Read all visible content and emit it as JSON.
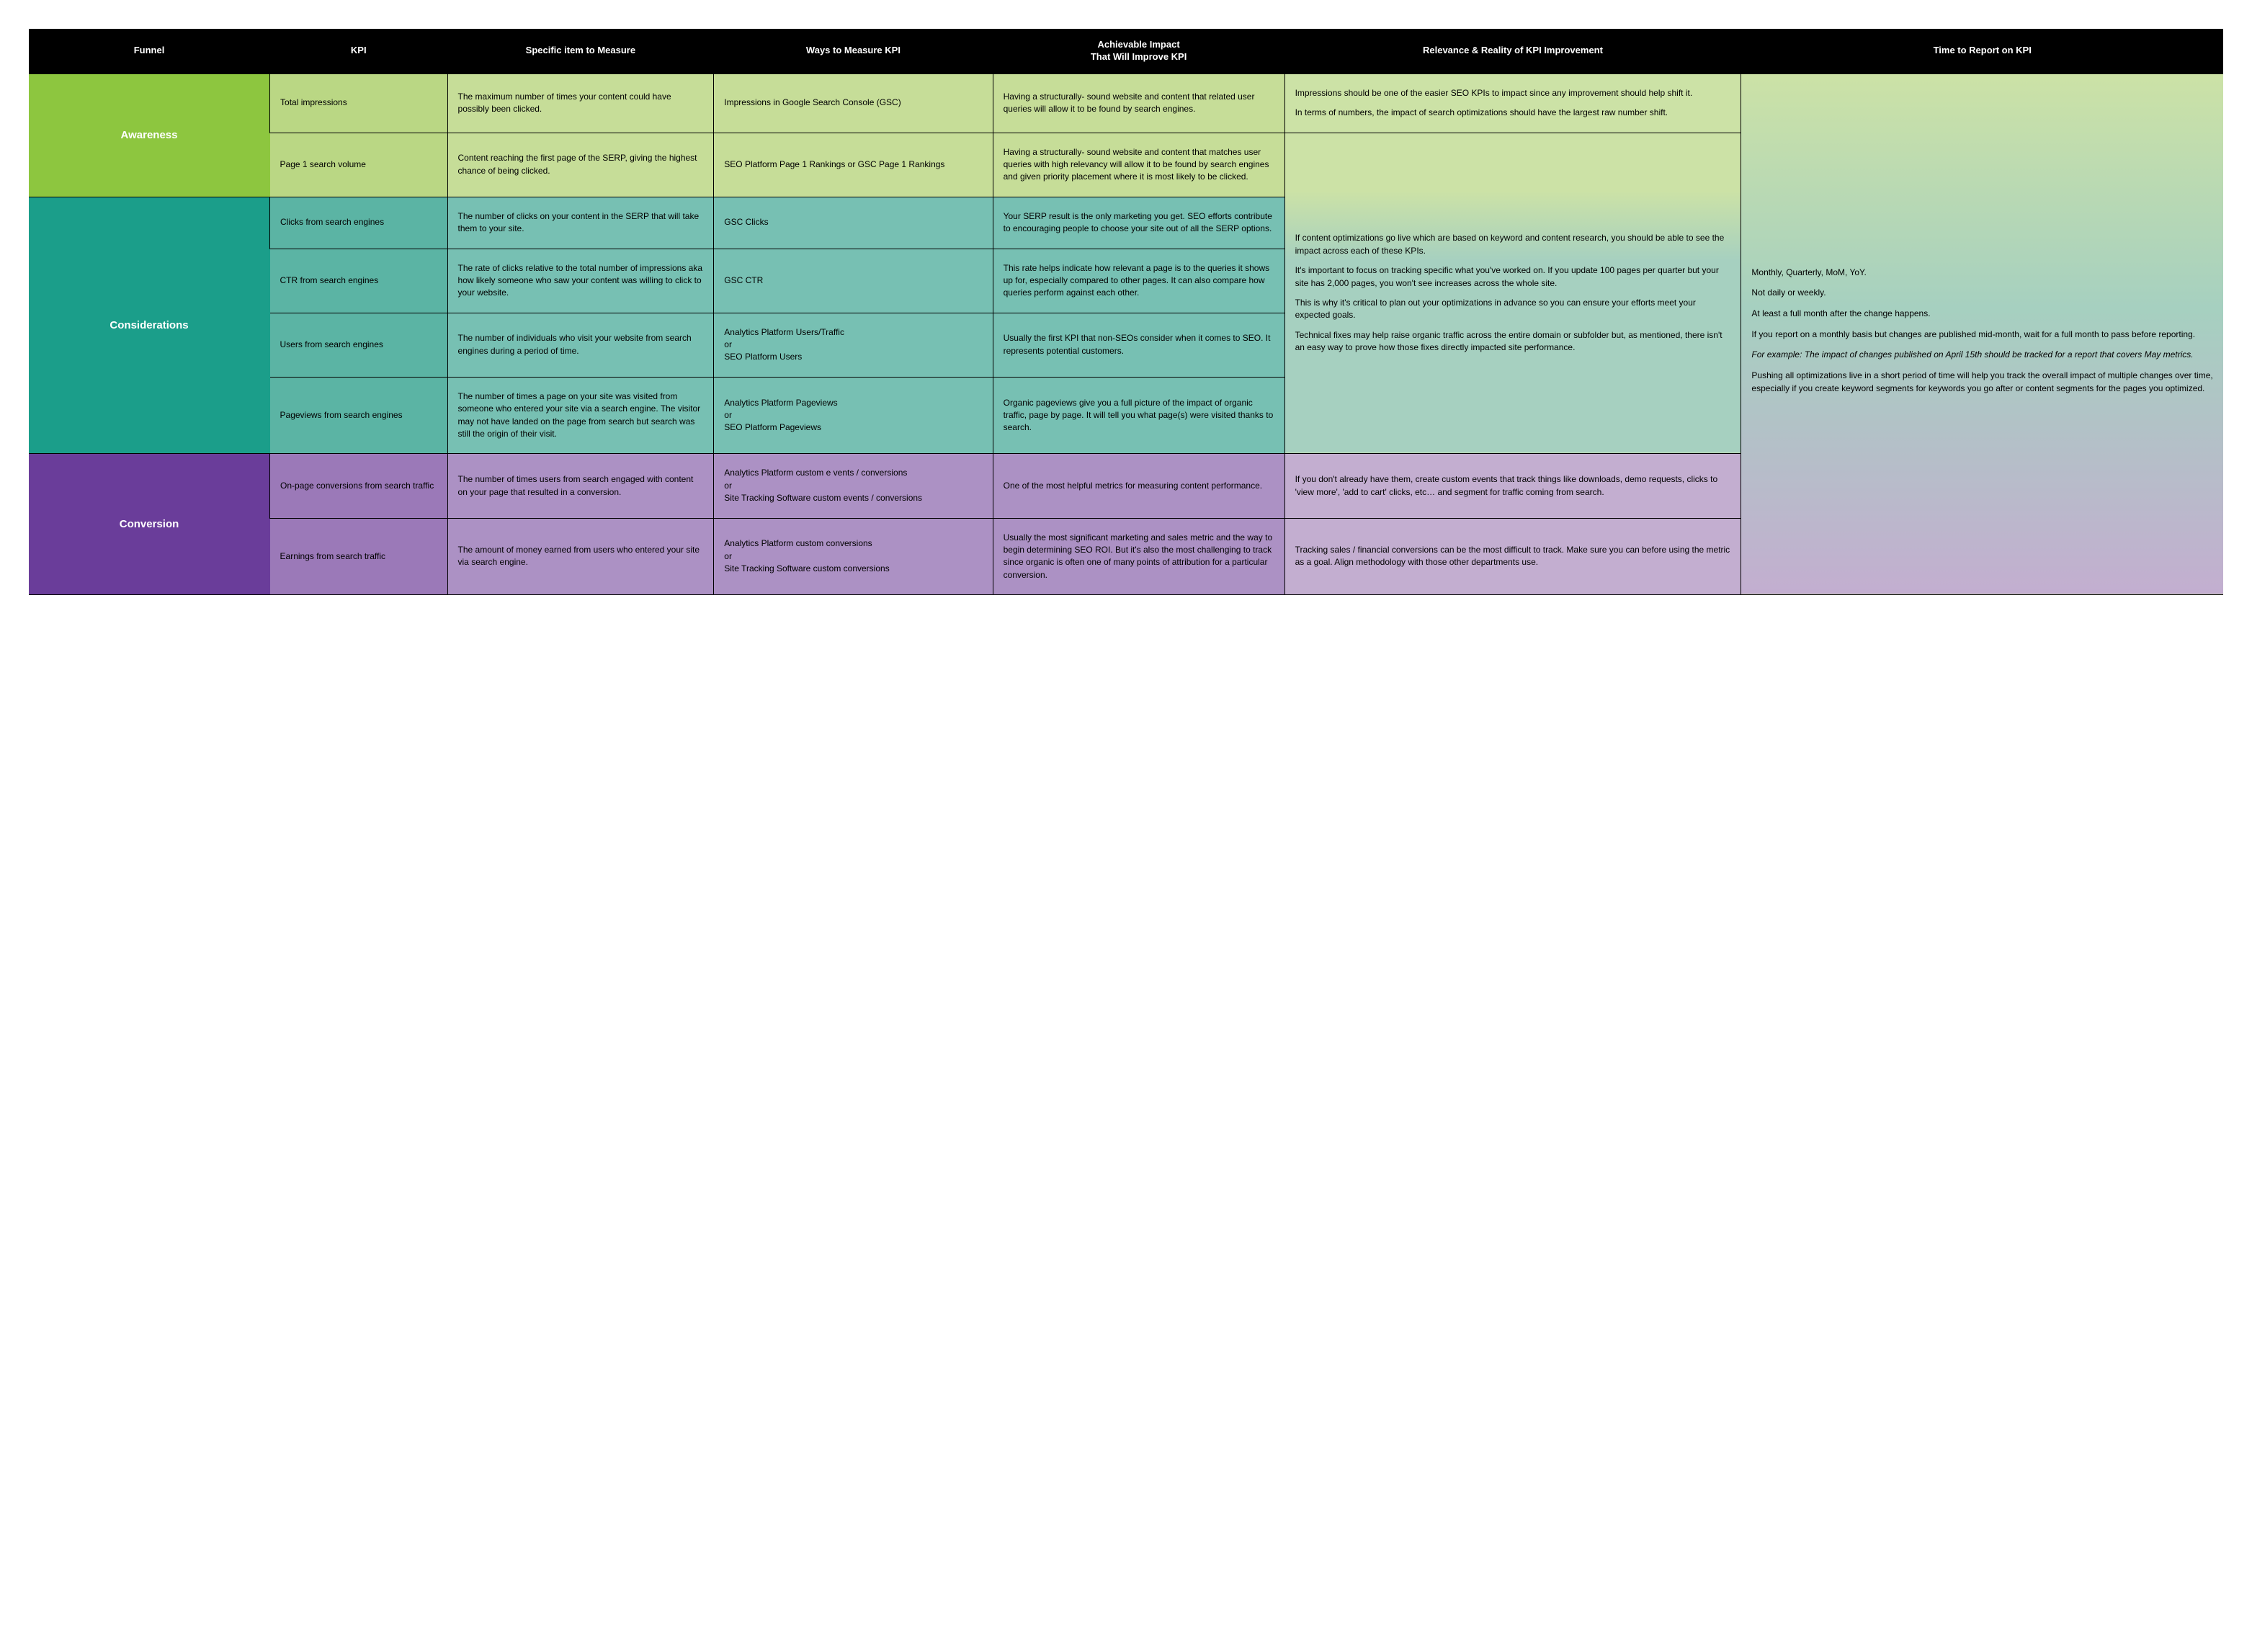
{
  "table": {
    "header_bg": "#000000",
    "header_fg": "#ffffff",
    "sep_color": "#000000",
    "header_fontsize": 13,
    "body_fontsize": 12,
    "columns": [
      "Funnel",
      "KPI",
      "Specific item to Measure",
      "Ways to Measure KPI",
      "Achievable Impact\nThat Will Improve KPI",
      "Relevance & Reality of KPI Improvement",
      "Time to Report on KPI"
    ],
    "time_cell_bg": "linear-gradient(180deg,#cce2a6 0%, #a6d0c0 45%, #c3aed0 100%)",
    "sections": [
      {
        "name": "Awareness",
        "funnel_bg": "#8dc63f",
        "tones": [
          "#a4ce4e",
          "#bad784",
          "#c6dd98",
          "#c6dd98",
          "#c6dd98",
          "#cce2a6"
        ],
        "rows": [
          {
            "kpi": "Total impressions",
            "specific": "The maximum number of times your content could have possibly been clicked.",
            "ways": "Impressions in Google Search Console (GSC)",
            "impact": "Having a structurally- sound website and content that related user queries will allow it to be found by search engines.",
            "relevance": [
              "Impressions should be one of the easier SEO KPIs to impact since any improvement should help shift it.",
              "In terms of numbers, the impact of search optimizations should have the largest raw number shift."
            ],
            "relevance_rowspan": 1
          },
          {
            "kpi": "Page 1 search volume",
            "specific": "Content reaching the first page of the SERP, giving the highest chance of being clicked.",
            "ways": "SEO Platform Page 1 Rankings or GSC Page 1 Rankings",
            "impact": "Having a structurally- sound website and content that matches user queries with high relevancy will allow it to be found by search engines and given priority placement where it is most likely to be clicked.",
            "relevance_start_combined": true
          }
        ]
      },
      {
        "name": "Considerations",
        "funnel_bg": "#1b9e8a",
        "tones": [
          "#3fa896",
          "#5bb4a4",
          "#77c0b3",
          "#77c0b3",
          "#77c0b3",
          "#a6d0c0"
        ],
        "combined_relevance": [
          "If content optimizations go live which are based on keyword and content research, you should be able to see the impact across each of these KPIs.",
          "It's important to focus on tracking specific what you've worked on. If you update 100 pages per quarter but your site has 2,000 pages, you won't see increases across the whole site.",
          "This is why it's critical to plan out your optimizations in advance so you can ensure your efforts meet your expected goals.",
          "Technical fixes may help raise organic traffic across the entire domain or subfolder but, as mentioned, there isn't an easy way to prove how those fixes directly impacted site performance."
        ],
        "rows": [
          {
            "kpi": "Clicks from search engines",
            "specific": "The number of clicks on your content in the SERP that will take them to your site.",
            "ways": "GSC Clicks",
            "impact": "Your SERP result is the only marketing you get. SEO efforts contribute to encouraging people to choose your site out of all the SERP options."
          },
          {
            "kpi": "CTR from search engines",
            "specific": "The rate of clicks relative to the total number of impressions aka how likely someone who saw your content was willing to click to your website.",
            "ways": "GSC CTR",
            "impact": "This rate helps indicate how relevant a page is to the queries it shows up for, especially compared to other pages. It can also compare how queries perform against each other."
          },
          {
            "kpi": "Users from search engines",
            "specific": "The number of individuals who visit your website from search engines during a period of time.",
            "ways": "Analytics Platform Users/Traffic\nor\nSEO Platform Users",
            "impact": "Usually the first KPI that non-SEOs consider when it comes to SEO. It represents potential customers."
          },
          {
            "kpi": "Pageviews from search engines",
            "specific": "The number of times a page on your site was visited from someone who entered your site via a search engine. The visitor may not have landed on the page from search but search was still the origin of their visit.",
            "ways": "Analytics Platform Pageviews\nor\nSEO Platform Pageviews",
            "impact": "Organic pageviews give you a full picture of the impact of organic traffic, page by page. It will tell you what page(s) were visited thanks to search."
          }
        ]
      },
      {
        "name": "Conversion",
        "funnel_bg": "#6a3d9a",
        "tones": [
          "#8559a8",
          "#9b79b8",
          "#ac91c4",
          "#ac91c4",
          "#ac91c4",
          "#c3aed0"
        ],
        "rows": [
          {
            "kpi": "On-page conversions from search traffic",
            "specific": "The number of times users from search engaged with content on your page that resulted in a conversion.",
            "ways": "Analytics Platform custom e vents / conversions\nor\nSite Tracking Software custom events / conversions",
            "impact": "One of the most helpful metrics for measuring content performance.",
            "relevance": [
              "If you don't already have them, create custom events that track things like downloads, demo requests, clicks to 'view more', 'add to cart' clicks, etc… and segment for traffic coming from search."
            ],
            "relevance_rowspan": 1
          },
          {
            "kpi": "Earnings from search traffic",
            "specific": "The amount of money earned from users who entered your site via search engine.",
            "ways": "Analytics Platform custom conversions\nor\nSite Tracking Software custom conversions",
            "impact": "Usually the most significant marketing and sales metric and the way to begin determining SEO ROI. But it's also the most challenging to track since organic is often one of many points of attribution for a particular conversion.",
            "relevance": [
              "Tracking sales / financial conversions can be the most difficult to track. Make sure you can before using the metric as a goal. Align methodology with those other departments use."
            ],
            "relevance_rowspan": 1
          }
        ]
      }
    ],
    "time_to_report": {
      "lines": [
        "Monthly, Quarterly, MoM, YoY.",
        "Not daily or weekly.",
        "At least a full month after the change happens.",
        "If you report on a monthly basis but changes are published mid-month, wait for a full month to pass before reporting."
      ],
      "example_italic": "For example: The impact of changes published on April 15th should be tracked for a report that covers May metrics.",
      "closing": "Pushing all optimizations live in a short period of time will help you track the overall impact of multiple changes over time, especially if you create keyword segments for keywords you go after or content segments for the pages you optimized."
    }
  }
}
